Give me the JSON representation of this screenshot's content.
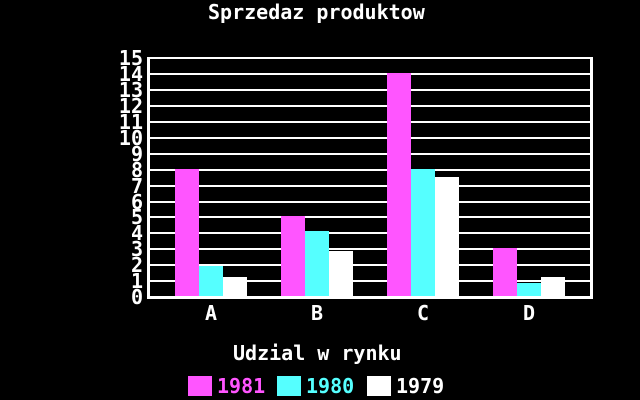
{
  "window": {
    "background_color": "#000000",
    "foreground_color": "#ffffff"
  },
  "chart_data": {
    "type": "bar",
    "title": "Sprzedaz produktow",
    "xlabel": "Udzial w rynku",
    "ylabel": "",
    "categories": [
      "A",
      "B",
      "C",
      "D"
    ],
    "series": [
      {
        "name": "1981",
        "color": "#ff55ff",
        "values": [
          8,
          5,
          14,
          3
        ]
      },
      {
        "name": "1980",
        "color": "#55ffff",
        "values": [
          1.9,
          4.1,
          8,
          0.8
        ]
      },
      {
        "name": "1979",
        "color": "#ffffff",
        "values": [
          1.2,
          2.8,
          7.5,
          1.2
        ]
      }
    ],
    "ylim": [
      0,
      15
    ],
    "ytick_step": 1,
    "grid": true,
    "gridline_color": "#ffffff",
    "legend_position": "bottom",
    "legend_entries": [
      "1981",
      "1980",
      "1979"
    ]
  }
}
